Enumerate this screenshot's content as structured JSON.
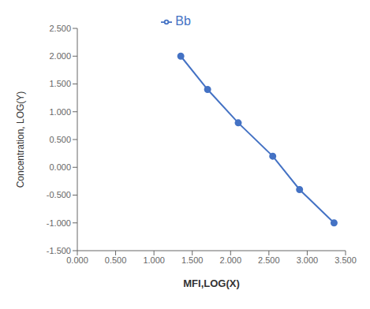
{
  "chart_data": {
    "type": "line",
    "x": [
      1.35,
      1.7,
      2.1,
      2.55,
      2.9,
      3.35
    ],
    "series": [
      {
        "name": "Bb",
        "color": "#4472C4",
        "marker": "circle",
        "values": [
          2.0,
          1.4,
          0.8,
          0.2,
          -0.4,
          -1.0
        ]
      }
    ],
    "xlabel": "MFI,LOG(X)",
    "ylabel": "Concentration, LOG(Y)",
    "xlim": [
      0.0,
      3.5
    ],
    "ylim": [
      -1.5,
      2.5
    ],
    "xticks": [
      {
        "value": 0.0,
        "label": "0.000"
      },
      {
        "value": 0.5,
        "label": "0.500"
      },
      {
        "value": 1.0,
        "label": "1.000"
      },
      {
        "value": 1.5,
        "label": "1.500"
      },
      {
        "value": 2.0,
        "label": "2.000"
      },
      {
        "value": 2.5,
        "label": "2.500"
      },
      {
        "value": 3.0,
        "label": "3.000"
      },
      {
        "value": 3.5,
        "label": "3.500"
      }
    ],
    "yticks": [
      {
        "value": -1.5,
        "label": "-1.500"
      },
      {
        "value": -1.0,
        "label": "-1.000"
      },
      {
        "value": -0.5,
        "label": "-0.500"
      },
      {
        "value": 0.0,
        "label": "0.000"
      },
      {
        "value": 0.5,
        "label": "0.500"
      },
      {
        "value": 1.0,
        "label": "1.000"
      },
      {
        "value": 1.5,
        "label": "1.500"
      },
      {
        "value": 2.0,
        "label": "2.000"
      },
      {
        "value": 2.5,
        "label": "2.500"
      }
    ],
    "grid": false,
    "legend": "top"
  }
}
